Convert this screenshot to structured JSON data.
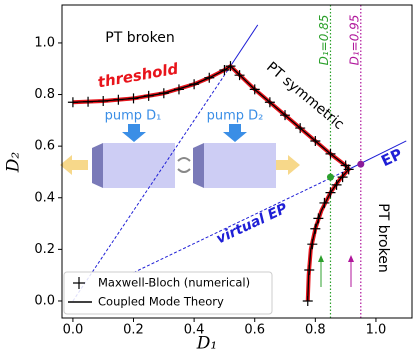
{
  "chart_data": {
    "type": "line",
    "xlabel": "D₁",
    "ylabel": "D₂",
    "xlim": [
      -0.036,
      1.119
    ],
    "ylim": [
      -0.066,
      1.147
    ],
    "xticks": [
      {
        "value": 0,
        "label": "0.0"
      },
      0.2,
      0.4,
      0.6,
      0.8,
      {
        "value": 1,
        "label": "1.0"
      }
    ],
    "yticks": [
      {
        "value": 0,
        "label": "0.0"
      },
      0.2,
      0.4,
      0.6,
      0.8,
      {
        "value": 1,
        "label": "1.0"
      }
    ],
    "series": [
      {
        "name": "threshold",
        "color": "#e8141b",
        "x": [
          0,
          0.1,
          0.2,
          0.3,
          0.4,
          0.45,
          0.5,
          0.52,
          0.6,
          0.7,
          0.8,
          0.85,
          0.9,
          0.91,
          0.88,
          0.85,
          0.82,
          0.8,
          0.785,
          0.778,
          0.775
        ],
        "values": [
          0.77,
          0.775,
          0.785,
          0.805,
          0.84,
          0.865,
          0.895,
          0.91,
          0.82,
          0.72,
          0.62,
          0.57,
          0.525,
          0.51,
          0.47,
          0.42,
          0.35,
          0.28,
          0.2,
          0.1,
          0
        ]
      },
      {
        "name": "Maxwell-Bloch (numerical)",
        "color": "#000000",
        "x": [
          0,
          0.05,
          0.1,
          0.15,
          0.2,
          0.25,
          0.3,
          0.35,
          0.4,
          0.45,
          0.5,
          0.52,
          0.55,
          0.6,
          0.65,
          0.7,
          0.75,
          0.8,
          0.85,
          0.9,
          0.91,
          0.89,
          0.87,
          0.85,
          0.83,
          0.81,
          0.8,
          0.79,
          0.78,
          0.775
        ],
        "values": [
          0.77,
          0.772,
          0.775,
          0.78,
          0.785,
          0.795,
          0.805,
          0.82,
          0.84,
          0.865,
          0.895,
          0.91,
          0.875,
          0.82,
          0.77,
          0.72,
          0.67,
          0.62,
          0.57,
          0.525,
          0.51,
          0.48,
          0.45,
          0.42,
          0.38,
          0.32,
          0.28,
          0.22,
          0.12,
          0
        ]
      },
      {
        "name": "Coupled Mode Theory",
        "color": "#000000",
        "x": [
          0,
          0.1,
          0.2,
          0.3,
          0.4,
          0.45,
          0.5,
          0.52,
          0.6,
          0.7,
          0.8,
          0.85,
          0.9,
          0.91,
          0.88,
          0.85,
          0.82,
          0.8,
          0.785,
          0.778,
          0.775
        ],
        "values": [
          0.77,
          0.775,
          0.785,
          0.805,
          0.84,
          0.865,
          0.895,
          0.91,
          0.82,
          0.72,
          0.62,
          0.57,
          0.525,
          0.51,
          0.47,
          0.42,
          0.35,
          0.28,
          0.2,
          0.1,
          0
        ]
      }
    ],
    "lines": [
      {
        "color": "#1f1fd6",
        "dashed": true,
        "x": [
          0,
          0.52
        ],
        "values": [
          0,
          0.91
        ]
      },
      {
        "color": "#1f1fd6",
        "dashed": false,
        "x": [
          0.52,
          0.61
        ],
        "values": [
          0.91,
          1.07
        ]
      },
      {
        "color": "#1f1fd6",
        "dashed": true,
        "x": [
          0.2,
          0.91
        ],
        "values": [
          0.11,
          0.51
        ]
      },
      {
        "color": "#1f1fd6",
        "dashed": false,
        "x": [
          0.91,
          1.1
        ],
        "values": [
          0.51,
          0.62
        ]
      }
    ],
    "vlines": [
      {
        "label": "D₁=0.85",
        "x": 0.85,
        "color": "#2ca02c"
      },
      {
        "label": "D₁=0.95",
        "x": 0.95,
        "color": "#b0169b"
      }
    ],
    "points": [
      {
        "x": 0.85,
        "y": 0.48,
        "color": "#2ca02c"
      },
      {
        "x": 0.95,
        "y": 0.53,
        "color": "#8b1a9a"
      }
    ],
    "annotations": {
      "pt_broken_top": "PT broken",
      "pt_symmetric": "PT symmetric",
      "ep": "EP",
      "virtual_ep": "virtual EP",
      "pt_broken_right": "PT broken",
      "pump1": "pump D₁",
      "pump2": "pump D₂"
    }
  }
}
